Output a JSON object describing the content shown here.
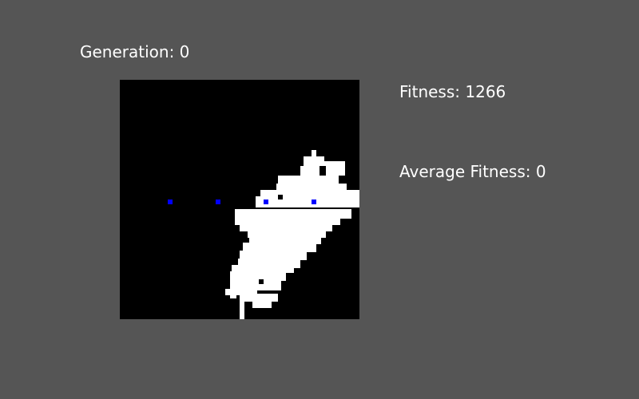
{
  "hud": {
    "generation_label": "Generation: 0",
    "fitness_label": "Fitness: 1266",
    "average_fitness_label": "Average Fitness: 0"
  },
  "colors": {
    "background": "#555555",
    "grid_background": "#000000",
    "cell_alive": "#ffffff",
    "marker": "#0000ff"
  }
}
